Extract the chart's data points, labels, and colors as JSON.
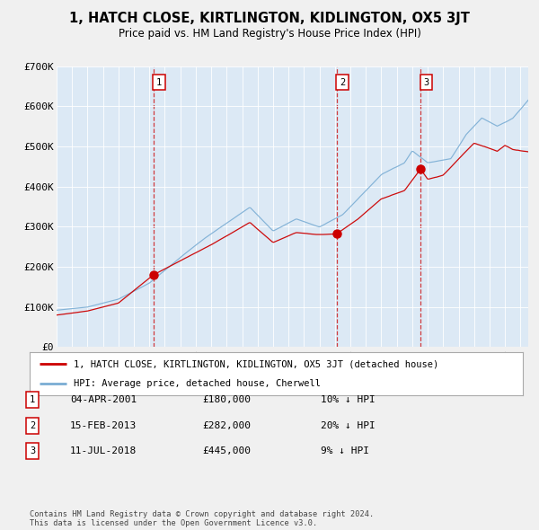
{
  "title": "1, HATCH CLOSE, KIRTLINGTON, KIDLINGTON, OX5 3JT",
  "subtitle": "Price paid vs. HM Land Registry's House Price Index (HPI)",
  "bg_color": "#dce9f5",
  "fig_bg_color": "#f0f0f0",
  "red_line_color": "#cc0000",
  "blue_line_color": "#7aadd4",
  "grid_color": "#ffffff",
  "purchases": [
    {
      "date_year": 2001.27,
      "price": 180000,
      "label": "1"
    },
    {
      "date_year": 2013.12,
      "price": 282000,
      "label": "2"
    },
    {
      "date_year": 2018.54,
      "price": 445000,
      "label": "3"
    }
  ],
  "legend": {
    "red_label": "1, HATCH CLOSE, KIRTLINGTON, KIDLINGTON, OX5 3JT (detached house)",
    "blue_label": "HPI: Average price, detached house, Cherwell"
  },
  "table_rows": [
    {
      "num": "1",
      "date": "04-APR-2001",
      "price": "£180,000",
      "hpi": "10% ↓ HPI"
    },
    {
      "num": "2",
      "date": "15-FEB-2013",
      "price": "£282,000",
      "hpi": "20% ↓ HPI"
    },
    {
      "num": "3",
      "date": "11-JUL-2018",
      "price": "£445,000",
      "hpi": "9% ↓ HPI"
    }
  ],
  "footnote": "Contains HM Land Registry data © Crown copyright and database right 2024.\nThis data is licensed under the Open Government Licence v3.0.",
  "ylim": [
    0,
    700000
  ],
  "yticks": [
    0,
    100000,
    200000,
    300000,
    400000,
    500000,
    600000,
    700000
  ],
  "ytick_labels": [
    "£0",
    "£100K",
    "£200K",
    "£300K",
    "£400K",
    "£500K",
    "£600K",
    "£700K"
  ],
  "xlim_start": 1995.0,
  "xlim_end": 2025.5
}
